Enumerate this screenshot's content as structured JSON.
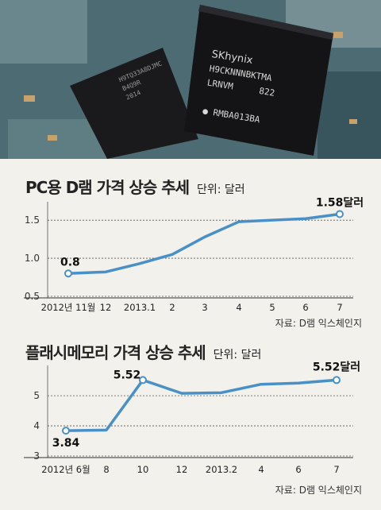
{
  "photo": {
    "chip_main_lines": [
      "SKhynix",
      "H9CKNNNBKTMA",
      "LRNVM     822",
      "● RMBA013BA"
    ],
    "chip_left_lines": [
      "H9TQ33A8DJMC",
      "B4Q9R",
      "2014"
    ]
  },
  "charts": [
    {
      "title": "PC용 D램 가격 상승 추세",
      "unit": "단위: 달러",
      "source": "자료: D램 익스체인지"
    },
    {
      "title": "플래시메모리 가격 상승 추세",
      "unit": "단위: 달러",
      "source": "자료: D램 익스체인지"
    }
  ],
  "chart_data": [
    {
      "type": "line",
      "title": "PC용 D램 가격 상승 추세",
      "unit": "단위: 달러",
      "categories": [
        "2012년 11월",
        "12",
        "2013.1",
        "2",
        "3",
        "4",
        "5",
        "6",
        "7"
      ],
      "values": [
        0.8,
        0.82,
        0.93,
        1.05,
        1.28,
        1.48,
        1.5,
        1.52,
        1.58
      ],
      "yticks": [
        "0.5",
        "1.0",
        "1.5"
      ],
      "ylim": [
        0.5,
        1.7
      ],
      "annotations": [
        {
          "index": 0,
          "text": "0.8"
        },
        {
          "index": 8,
          "text": "1.58달러"
        }
      ],
      "line_color": "#4a90c8"
    },
    {
      "type": "line",
      "title": "플래시메모리 가격 상승 추세",
      "unit": "단위: 달러",
      "categories": [
        "2012년 6월",
        "8",
        "10",
        "12",
        "2013.2",
        "4",
        "6",
        "7"
      ],
      "values": [
        3.84,
        3.86,
        5.52,
        5.08,
        5.1,
        5.38,
        5.42,
        5.52
      ],
      "yticks": [
        "3",
        "4",
        "5"
      ],
      "ylim": [
        3,
        5.9
      ],
      "annotations": [
        {
          "index": 0,
          "text": "3.84"
        },
        {
          "index": 2,
          "text": "5.52"
        },
        {
          "index": 7,
          "text": "5.52달러"
        }
      ],
      "line_color": "#4a90c8"
    }
  ]
}
